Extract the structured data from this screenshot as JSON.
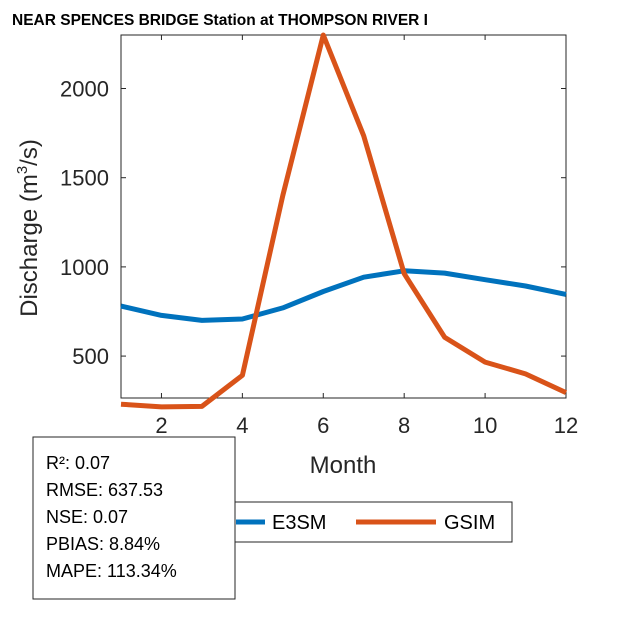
{
  "chart_data": {
    "type": "line",
    "title": "NEAR SPENCES BRIDGE  Station at  THOMPSON RIVER  I",
    "xlabel": "Month",
    "ylabel": "Discharge (m",
    "ylabel_sup": "3",
    "ylabel_tail": "/s)",
    "xlim": [
      1,
      12
    ],
    "ylim": [
      265,
      2300
    ],
    "xticks": [
      2,
      4,
      6,
      8,
      10,
      12
    ],
    "yticks": [
      500,
      1000,
      1500,
      2000
    ],
    "grid": false,
    "legend_position": "bottom",
    "x": [
      1,
      2,
      3,
      4,
      5,
      6,
      7,
      8,
      9,
      10,
      11,
      12
    ],
    "series": [
      {
        "name": "E3SM",
        "color": "#0072BD",
        "values": [
          780,
          728,
          700,
          708,
          770,
          862,
          942,
          978,
          965,
          928,
          893,
          846
        ]
      },
      {
        "name": "GSIM",
        "color": "#D95319",
        "values": [
          230,
          215,
          218,
          392,
          1400,
          2300,
          1735,
          962,
          606,
          466,
          400,
          295
        ]
      }
    ]
  },
  "stats": {
    "r2": "R²: 0.07",
    "rmse": "RMSE: 637.53",
    "nse": "NSE: 0.07",
    "pbias": "PBIAS: 8.84%",
    "mape": "MAPE: 113.34%"
  }
}
